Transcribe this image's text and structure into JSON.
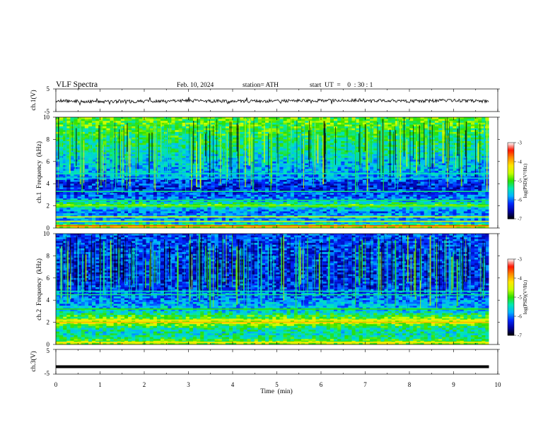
{
  "header": {
    "title": "VLF  Spectra",
    "date": "Feb. 10, 2024",
    "station": "station= ATH",
    "start": "start  UT  =    0  : 30 : 1"
  },
  "chart_data": [
    {
      "id": "ch1-waveform",
      "type": "line",
      "ylabel": "ch.1(V)",
      "ylim": [
        -5,
        5
      ],
      "y_tick_labels": [
        "5",
        "-5"
      ],
      "xlim": [
        0,
        10
      ],
      "data_end_min": 9.8,
      "color": "#000000",
      "trace_mean": -0.3,
      "trace_spread": 0.7,
      "series": [
        {
          "x": [
            0,
            1,
            2,
            3,
            4,
            5,
            6,
            7,
            8,
            9,
            9.8
          ],
          "y": [
            -0.2,
            -0.6,
            -0.5,
            -0.2,
            -0.5,
            -0.3,
            -0.2,
            0.0,
            -0.4,
            -0.1,
            -0.5
          ]
        }
      ]
    },
    {
      "id": "ch1-spectrogram",
      "type": "heatmap",
      "ylabel": "ch.1  Frequency  (kHz)",
      "ylim": [
        0,
        10
      ],
      "y_ticks": [
        0,
        2,
        4,
        6,
        8,
        10
      ],
      "xlim": [
        0,
        10
      ],
      "data_end_min": 9.8,
      "colorbar": {
        "label": "log(PSD)(V²/Hz)",
        "range": [
          -7,
          -3
        ],
        "ticks": [
          "-3",
          "-4",
          "-5",
          "-6",
          "-7"
        ]
      },
      "frequency_profile_logpsd": [
        {
          "f": 0.0,
          "v": -4.2
        },
        {
          "f": 0.4,
          "v": -5.6
        },
        {
          "f": 0.8,
          "v": -5.9
        },
        {
          "f": 1.0,
          "v": -5.7
        },
        {
          "f": 1.4,
          "v": -6.0
        },
        {
          "f": 1.8,
          "v": -5.6
        },
        {
          "f": 2.1,
          "v": -5.0
        },
        {
          "f": 2.5,
          "v": -5.9
        },
        {
          "f": 3.0,
          "v": -6.1
        },
        {
          "f": 3.5,
          "v": -6.3
        },
        {
          "f": 4.2,
          "v": -6.2
        },
        {
          "f": 4.8,
          "v": -5.8
        },
        {
          "f": 6.0,
          "v": -5.7
        },
        {
          "f": 7.0,
          "v": -5.4
        },
        {
          "f": 8.0,
          "v": -5.2
        },
        {
          "f": 9.0,
          "v": -5.0
        },
        {
          "f": 10.0,
          "v": -4.9
        }
      ],
      "narrowband_lines_khz": [
        {
          "f": 0.2,
          "v": -3.6
        },
        {
          "f": 0.6,
          "v": -4.5
        },
        {
          "f": 1.0,
          "v": -4.4
        },
        {
          "f": 2.0,
          "v": -4.8
        },
        {
          "f": 2.5,
          "v": -5.2
        },
        {
          "f": 3.3,
          "v": -5.3
        },
        {
          "f": 4.5,
          "v": -5.6
        },
        {
          "f": 4.9,
          "v": -5.4
        }
      ],
      "burst_count": 140,
      "burst_level_logpsd": -5.0
    },
    {
      "id": "ch2-spectrogram",
      "type": "heatmap",
      "ylabel": "ch.2  Frequency  (kHz)",
      "ylim": [
        0,
        10
      ],
      "y_ticks": [
        0,
        2,
        4,
        6,
        8,
        10
      ],
      "xlim": [
        0,
        10
      ],
      "data_end_min": 9.8,
      "colorbar": {
        "label": "log(PSD)(V²/Hz)",
        "range": [
          -7,
          -3
        ],
        "ticks": [
          "-3",
          "-4",
          "-5",
          "-6",
          "-7"
        ]
      },
      "frequency_profile_logpsd": [
        {
          "f": 0.0,
          "v": -4.6
        },
        {
          "f": 0.5,
          "v": -5.2
        },
        {
          "f": 1.0,
          "v": -5.5
        },
        {
          "f": 1.5,
          "v": -5.3
        },
        {
          "f": 2.0,
          "v": -4.5
        },
        {
          "f": 2.4,
          "v": -4.9
        },
        {
          "f": 3.0,
          "v": -5.6
        },
        {
          "f": 3.6,
          "v": -5.8
        },
        {
          "f": 4.2,
          "v": -6.0
        },
        {
          "f": 5.0,
          "v": -6.2
        },
        {
          "f": 6.0,
          "v": -6.3
        },
        {
          "f": 7.0,
          "v": -6.3
        },
        {
          "f": 8.0,
          "v": -6.2
        },
        {
          "f": 9.0,
          "v": -6.2
        },
        {
          "f": 10.0,
          "v": -6.1
        }
      ],
      "narrowband_lines_khz": [
        {
          "f": 0.2,
          "v": -4.2
        },
        {
          "f": 2.0,
          "v": -4.0
        },
        {
          "f": 2.2,
          "v": -4.3
        },
        {
          "f": 3.2,
          "v": -5.0
        },
        {
          "f": 4.5,
          "v": -5.3
        },
        {
          "f": 4.8,
          "v": -5.4
        }
      ],
      "burst_count": 160,
      "burst_level_logpsd": -5.3
    },
    {
      "id": "ch3-waveform",
      "type": "line",
      "ylabel": "ch.3(V)",
      "ylim": [
        -5,
        5
      ],
      "y_tick_labels": [
        "5",
        "-5"
      ],
      "xlim": [
        0,
        10
      ],
      "data_end_min": 9.8,
      "color": "#000000",
      "series": [
        {
          "x": [
            0,
            9.8
          ],
          "y": [
            -2,
            -2
          ]
        }
      ]
    }
  ],
  "x_axis": {
    "label": "Time  (min)",
    "ticks": [
      "0",
      "1",
      "2",
      "3",
      "4",
      "5",
      "6",
      "7",
      "8",
      "9",
      "10"
    ]
  },
  "colormap": [
    "#000000",
    "#0000a0",
    "#0028ff",
    "#00b4ff",
    "#00e8b4",
    "#2ce000",
    "#c8ff00",
    "#ffe600",
    "#ff8c00",
    "#ff1400",
    "#ffffff"
  ]
}
